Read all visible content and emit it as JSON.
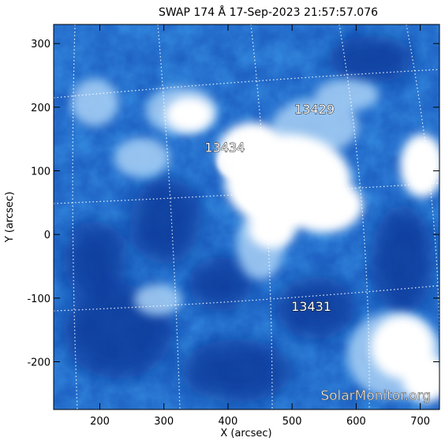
{
  "title": "SWAP 174 Å 17-Sep-2023 21:57:57.076",
  "axes": {
    "xlabel": "X (arcsec)",
    "ylabel": "Y (arcsec)",
    "x_range": [
      128,
      730
    ],
    "y_range": [
      -275,
      330
    ],
    "x_ticks": [
      {
        "value": 200,
        "label": "200"
      },
      {
        "value": 300,
        "label": "300"
      },
      {
        "value": 400,
        "label": "400"
      },
      {
        "value": 500,
        "label": "500"
      },
      {
        "value": 600,
        "label": "600"
      },
      {
        "value": 700,
        "label": "700"
      }
    ],
    "y_ticks": [
      {
        "value": 300,
        "label": "300"
      },
      {
        "value": 200,
        "label": "200"
      },
      {
        "value": 100,
        "label": "100"
      },
      {
        "value": 0,
        "label": "0"
      },
      {
        "value": -100,
        "label": "-100"
      },
      {
        "value": -200,
        "label": "-200"
      }
    ]
  },
  "active_regions": [
    {
      "label": "13429",
      "x": 535,
      "y": 190
    },
    {
      "label": "13434",
      "x": 395,
      "y": 130
    },
    {
      "label": "13431",
      "x": 530,
      "y": -120
    }
  ],
  "watermark": "SolarMonitor.org",
  "colors": {
    "dark": "#0a3a9a",
    "mid": "#2f7ad6",
    "light": "#9cc8f2",
    "bright": "#ffffff",
    "grid": "#ffffff"
  }
}
